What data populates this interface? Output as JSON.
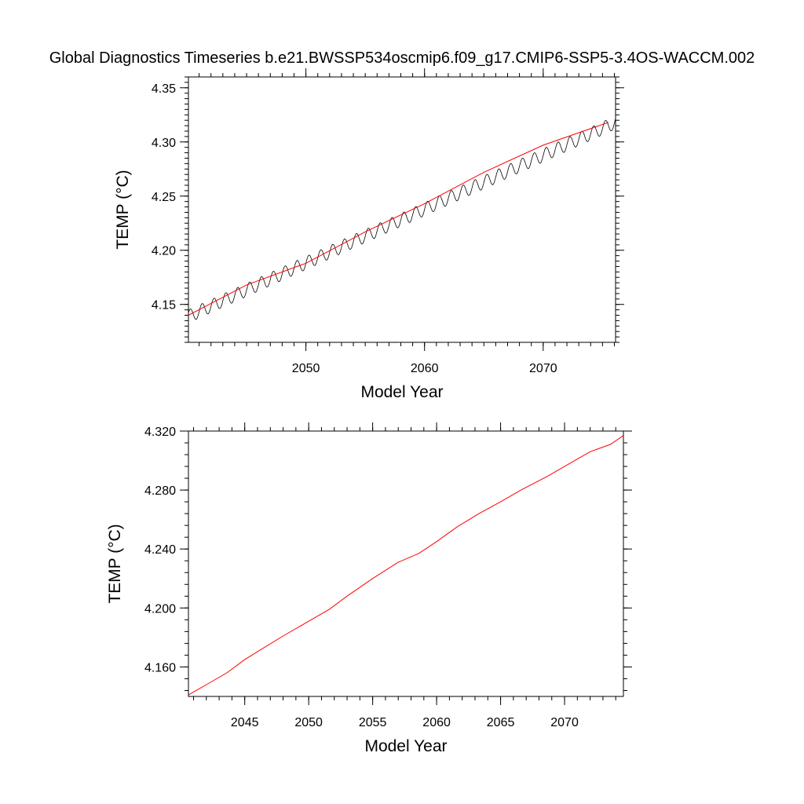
{
  "title": "Global Diagnostics Timeseries b.e21.BWSSP534oscmip6.f09_g17.CMIP6-SSP5-3.4OS-WACCM.002",
  "colors": {
    "raw": "#000000",
    "smooth": "#ff0000"
  },
  "chart_data": [
    {
      "type": "line",
      "xlabel": "Model Year",
      "ylabel": "TEMP (°C)",
      "xlim": [
        2040.1,
        2076.1
      ],
      "ylim": [
        4.115,
        4.36
      ],
      "xticks": [
        "2050",
        "2060",
        "2070"
      ],
      "yticks": [
        "4.15",
        "4.20",
        "4.25",
        "4.30",
        "4.35"
      ],
      "grid": false,
      "series": [
        {
          "style": "monthly-with-seasonal-cycle",
          "color": "#000000",
          "x": [
            2040.1,
            2076.1
          ],
          "y": [
            4.139,
            4.318
          ],
          "seasonal_amplitude": 0.006
        },
        {
          "style": "smoothed",
          "color": "#ff0000",
          "x": [
            2040.1,
            2045,
            2050,
            2055,
            2060,
            2065,
            2070,
            2075.5
          ],
          "y": [
            4.14,
            4.168,
            4.188,
            4.217,
            4.243,
            4.272,
            4.297,
            4.318
          ]
        }
      ]
    },
    {
      "type": "line",
      "xlabel": "Model Year",
      "ylabel": "TEMP (°C)",
      "xlim": [
        2040.6,
        2074.6
      ],
      "ylim": [
        4.14,
        4.32
      ],
      "xticks": [
        "2045",
        "2050",
        "2055",
        "2060",
        "2065",
        "2070"
      ],
      "yticks": [
        "4.160",
        "4.200",
        "4.240",
        "4.280",
        "4.320"
      ],
      "grid": false,
      "series": [
        {
          "style": "smoothed",
          "color": "#ff0000",
          "x": [
            2040.6,
            2042,
            2043.6,
            2045,
            2046.3,
            2048,
            2050,
            2051.6,
            2053,
            2055,
            2057,
            2058.6,
            2060,
            2061.6,
            2063.3,
            2065,
            2066.6,
            2068.6,
            2070,
            2072,
            2073.6,
            2074.6
          ],
          "y": [
            4.141,
            4.148,
            4.156,
            4.165,
            4.172,
            4.181,
            4.191,
            4.199,
            4.208,
            4.22,
            4.231,
            4.237,
            4.245,
            4.255,
            4.264,
            4.272,
            4.28,
            4.289,
            4.296,
            4.306,
            4.311,
            4.317
          ]
        }
      ]
    }
  ]
}
